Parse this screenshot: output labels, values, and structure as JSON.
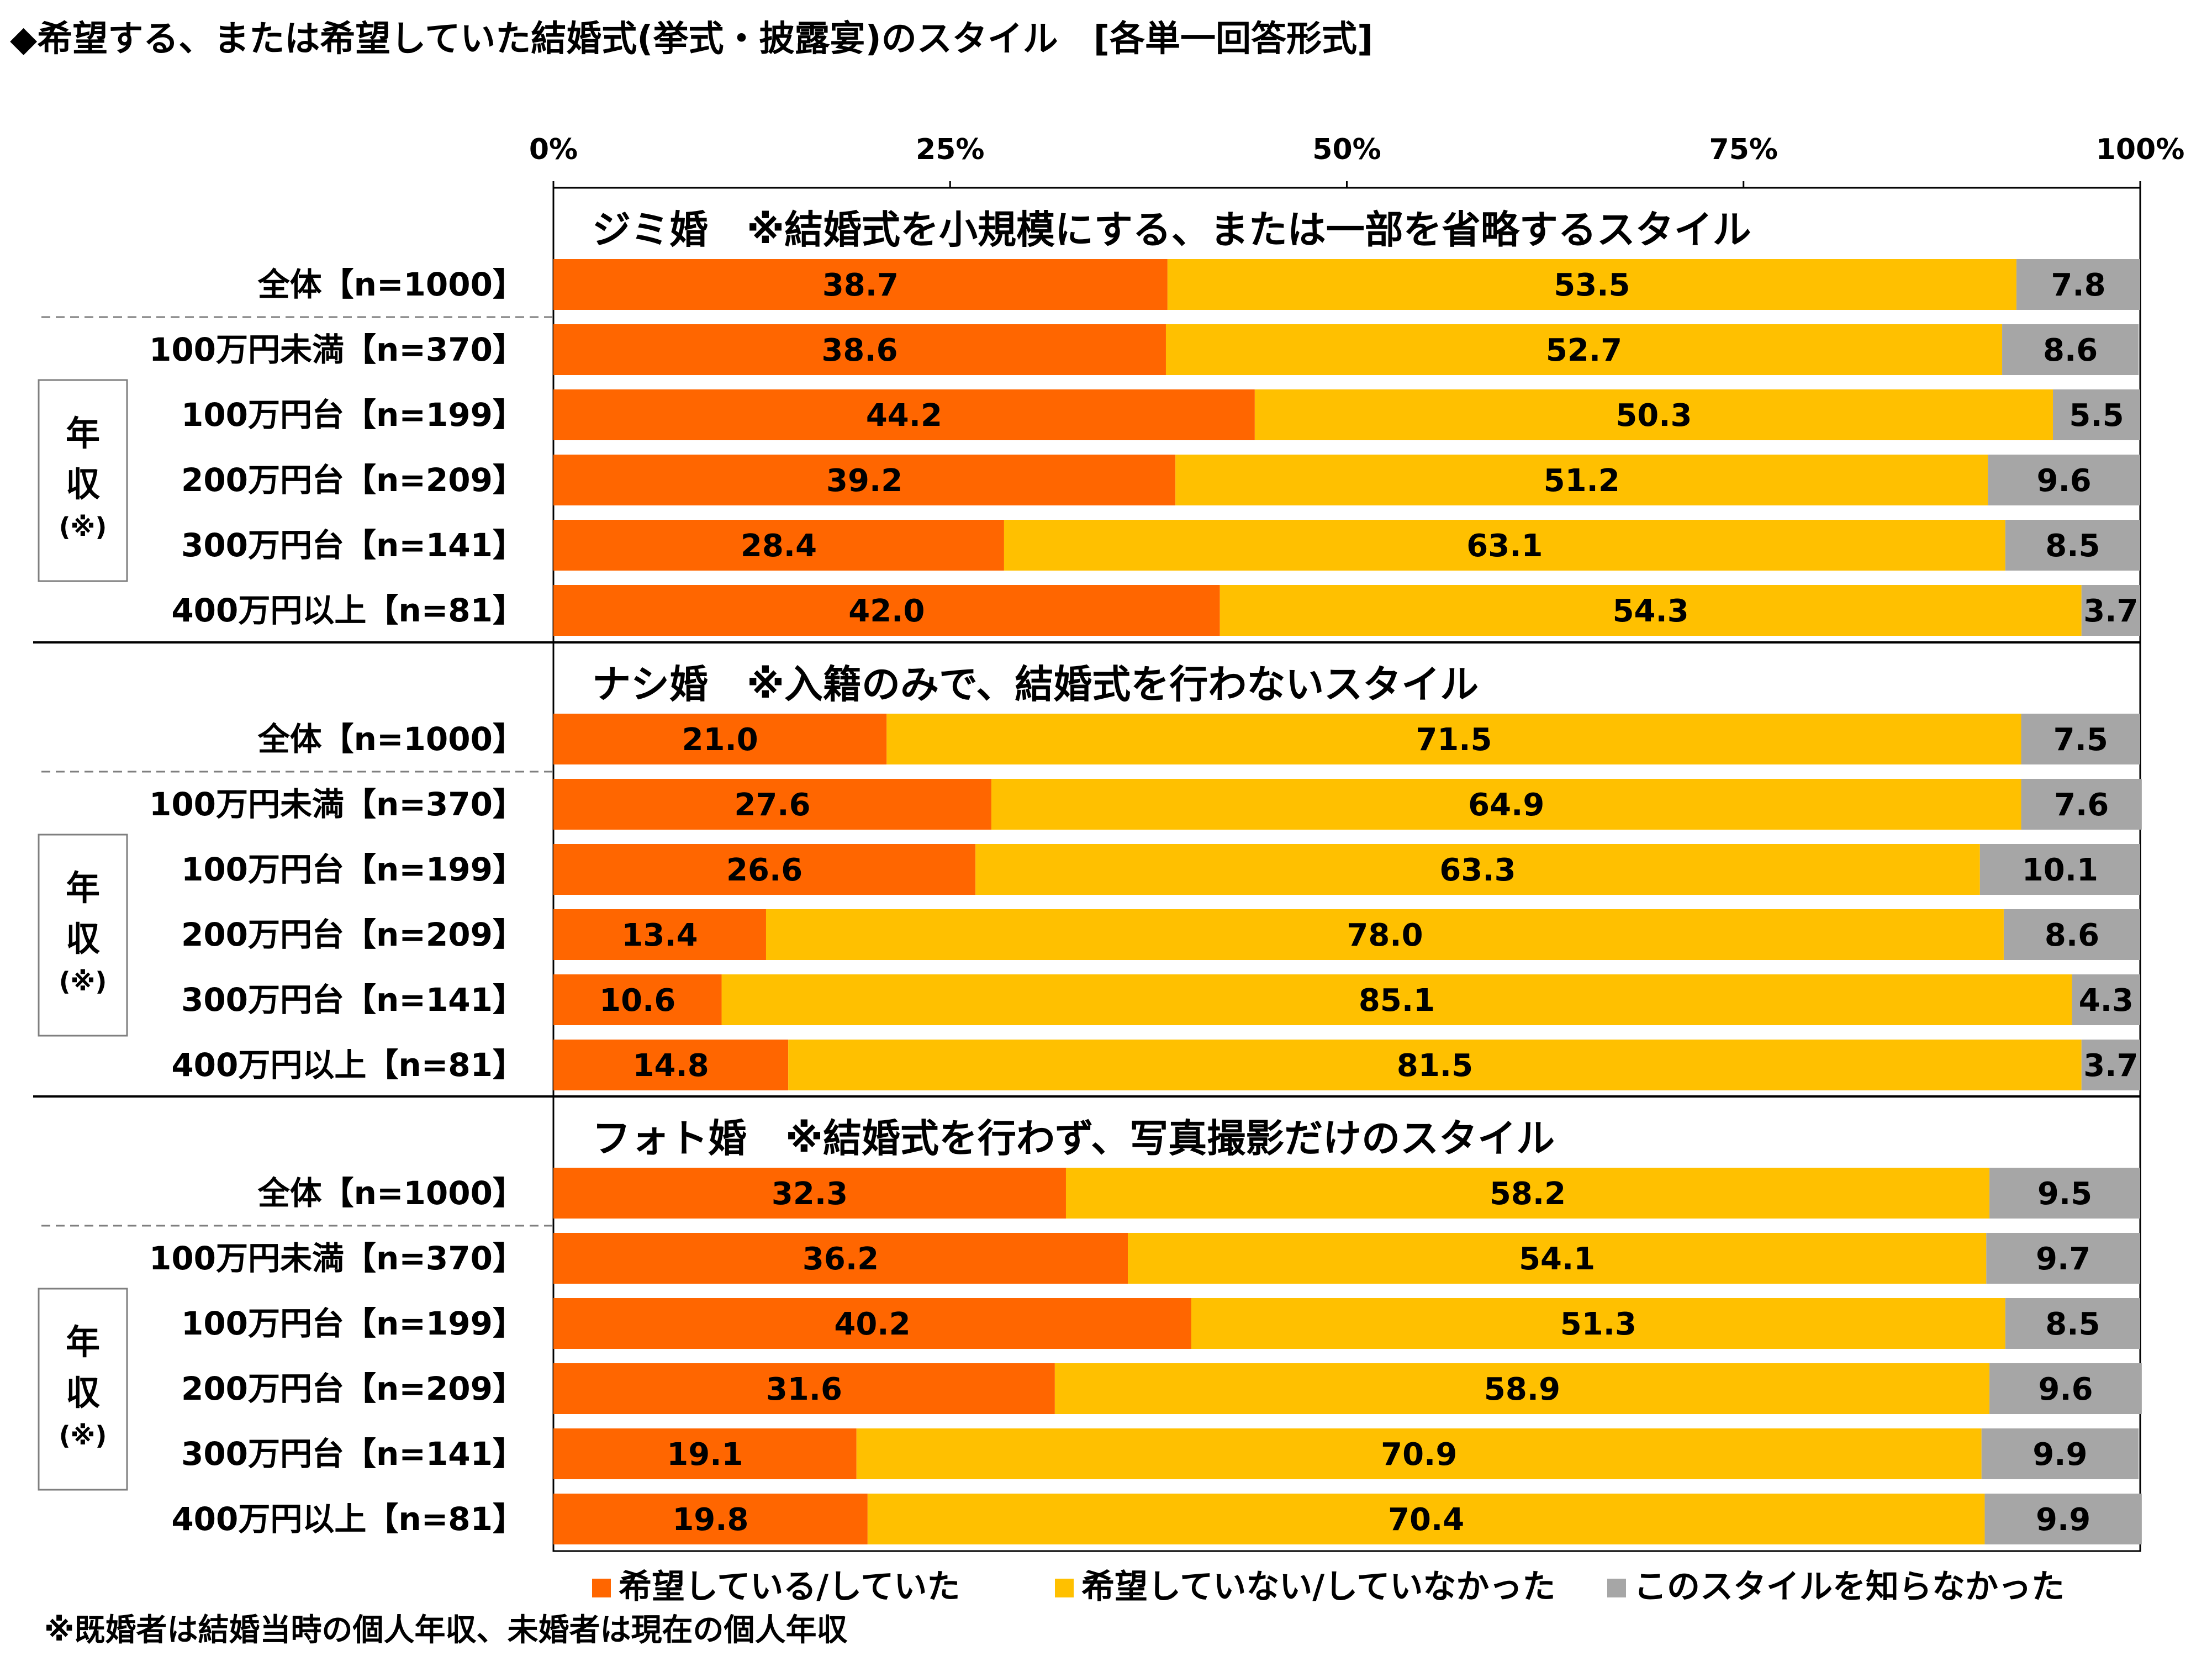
{
  "title": "◆希望する、または希望していた結婚式(挙式・披露宴)のスタイル　[各単一回答形式]",
  "note": "※既婚者は結婚当時の個人年収、未婚者は現在の個人年収",
  "group_label": {
    "line1": "年",
    "line2": "収",
    "line3": "(※)"
  },
  "colors": {
    "hope": "#ff6600",
    "nohope": "#ffc000",
    "unknown": "#a6a6a6"
  },
  "chart_data": {
    "type": "bar",
    "orientation": "horizontal",
    "stacked": "percent",
    "xlim": [
      0,
      100
    ],
    "ticks": [
      "0%",
      "25%",
      "50%",
      "75%",
      "100%"
    ],
    "legend_position": "bottom",
    "legend": [
      "希望している/していた",
      "希望していない/していなかった",
      "このスタイルを知らなかった"
    ],
    "categories": [
      "全体【n=1000】",
      "100万円未満【n=370】",
      "100万円台【n=199】",
      "200万円台【n=209】",
      "300万円台【n=141】",
      "400万円以上【n=81】"
    ],
    "sections": [
      {
        "title": "ジミ婚　※結婚式を小規模にする、または一部を省略するスタイル",
        "rows": [
          [
            38.7,
            53.5,
            7.8
          ],
          [
            38.6,
            52.7,
            8.6
          ],
          [
            44.2,
            50.3,
            5.5
          ],
          [
            39.2,
            51.2,
            9.6
          ],
          [
            28.4,
            63.1,
            8.5
          ],
          [
            42.0,
            54.3,
            3.7
          ]
        ]
      },
      {
        "title": "ナシ婚　※入籍のみで、結婚式を行わないスタイル",
        "rows": [
          [
            21.0,
            71.5,
            7.5
          ],
          [
            27.6,
            64.9,
            7.6
          ],
          [
            26.6,
            63.3,
            10.1
          ],
          [
            13.4,
            78.0,
            8.6
          ],
          [
            10.6,
            85.1,
            4.3
          ],
          [
            14.8,
            81.5,
            3.7
          ]
        ]
      },
      {
        "title": "フォト婚　※結婚式を行わず、写真撮影だけのスタイル",
        "rows": [
          [
            32.3,
            58.2,
            9.5
          ],
          [
            36.2,
            54.1,
            9.7
          ],
          [
            40.2,
            51.3,
            8.5
          ],
          [
            31.6,
            58.9,
            9.6
          ],
          [
            19.1,
            70.9,
            9.9
          ],
          [
            19.8,
            70.4,
            9.9
          ]
        ]
      }
    ]
  }
}
